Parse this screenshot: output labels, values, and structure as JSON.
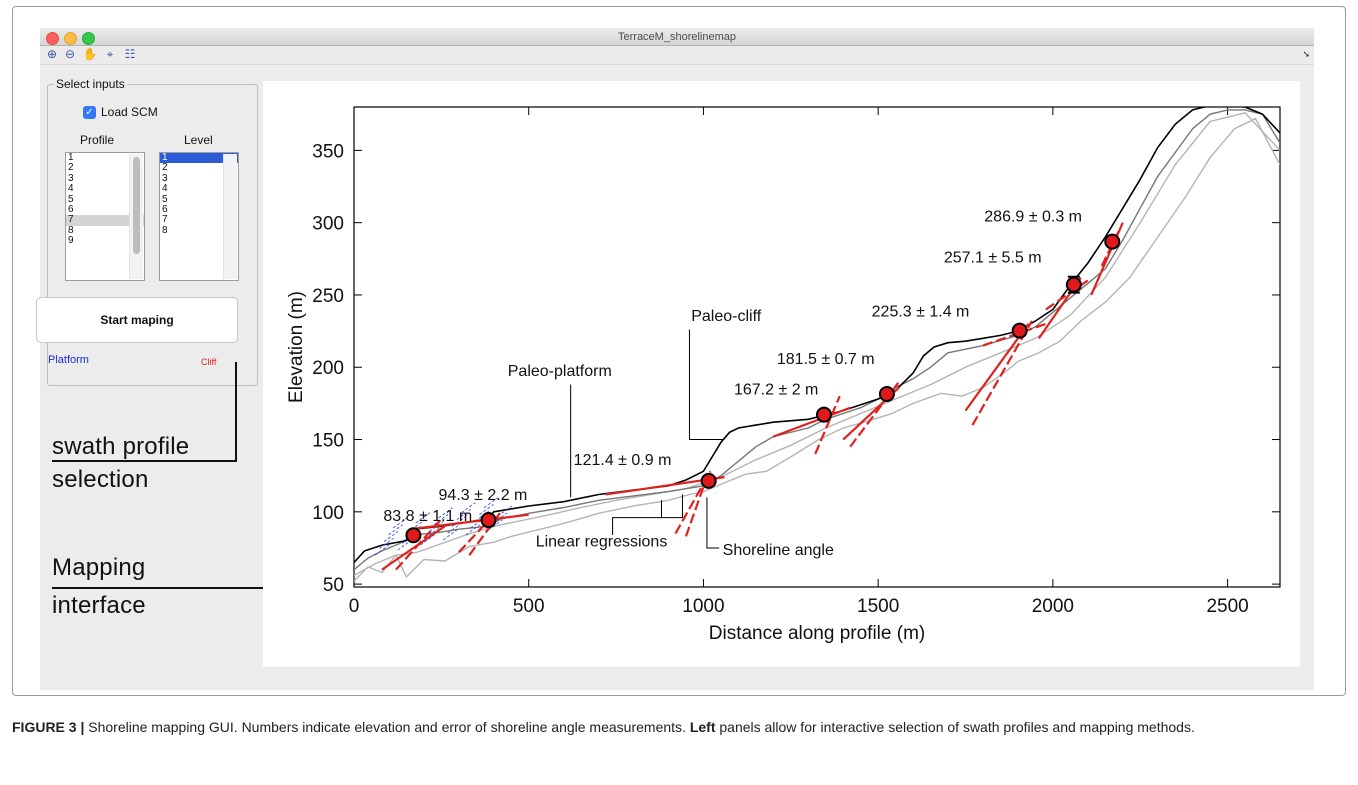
{
  "window": {
    "title": "TerraceM_shorelinemap"
  },
  "toolbar": {
    "buttons": [
      {
        "icon": "zoom-in-icon",
        "glyph": "⊕"
      },
      {
        "icon": "zoom-out-icon",
        "glyph": "⊖"
      },
      {
        "icon": "pan-hand-icon",
        "glyph": "✋"
      },
      {
        "icon": "data-cursor-icon",
        "glyph": "⌖"
      },
      {
        "icon": "legend-icon",
        "glyph": "☷"
      }
    ]
  },
  "inputs": {
    "group_title": "Select inputs",
    "load_scm_label": "Load SCM",
    "load_scm_checked": true,
    "profile_header": "Profile",
    "level_header": "Level",
    "profiles": [
      "1",
      "2",
      "3",
      "4",
      "5",
      "6",
      "7",
      "8",
      "9"
    ],
    "profile_selected": "7",
    "levels": [
      "1",
      "2",
      "3",
      "4",
      "5",
      "6",
      "7",
      "8"
    ],
    "level_selected": "1",
    "start_button": "Start maping",
    "platform_label": "Platform",
    "cliff_label": "Cliff"
  },
  "annotations": {
    "swath_line1": "swath profile",
    "swath_line2": "selection",
    "mapping_line1": "Mapping",
    "mapping_line2": "interface"
  },
  "caption": {
    "figure_label": "FIGURE 3 |",
    "text_a": " Shoreline mapping GUI. Numbers indicate elevation and error of shoreline angle measurements. ",
    "bold": "Left",
    "text_b": " panels allow for interactive selection of swath profiles and mapping methods."
  },
  "chart_data": {
    "type": "line",
    "xlabel": "Distance along profile (m)",
    "ylabel": "Elevation (m)",
    "xlim": [
      0,
      2650
    ],
    "ylim": [
      48,
      380
    ],
    "xticks": [
      0,
      500,
      1000,
      1500,
      2000,
      2500
    ],
    "yticks": [
      50,
      100,
      150,
      200,
      250,
      300,
      350
    ],
    "colors": {
      "profile_main": "#000000",
      "profile_mid": "#777777",
      "profile_light": "#b4b4b4",
      "platform": "#1f3fe0",
      "cliff": "#e0211d",
      "point_fill": "#e01a1a"
    },
    "series": [
      {
        "style": "main",
        "x": [
          0,
          30,
          80,
          150,
          170,
          250,
          300,
          380,
          400,
          500,
          600,
          700,
          800,
          900,
          950,
          1000,
          1030,
          1050,
          1075,
          1100,
          1150,
          1200,
          1300,
          1350,
          1400,
          1450,
          1500,
          1550,
          1600,
          1630,
          1660,
          1700,
          1750,
          1800,
          1850,
          1900,
          1950,
          2000,
          2060,
          2100,
          2150,
          2200,
          2250,
          2300,
          2350,
          2400,
          2450,
          2500,
          2550,
          2600,
          2650
        ],
        "y": [
          65,
          73,
          77,
          80,
          88,
          90,
          92,
          95,
          100,
          104,
          107,
          112,
          115,
          118,
          122,
          128,
          140,
          148,
          155,
          158,
          160,
          162,
          164,
          167,
          170,
          174,
          178,
          184,
          196,
          208,
          214,
          217,
          218,
          220,
          222,
          225,
          232,
          240,
          260,
          272,
          290,
          310,
          330,
          352,
          368,
          378,
          381,
          381,
          380,
          375,
          362
        ]
      },
      {
        "style": "mid",
        "x": [
          0,
          40,
          80,
          130,
          170,
          250,
          300,
          380,
          420,
          500,
          600,
          700,
          800,
          900,
          950,
          1000,
          1050,
          1100,
          1150,
          1200,
          1300,
          1350,
          1400,
          1450,
          1500,
          1550,
          1600,
          1650,
          1700,
          1800,
          1900,
          1950,
          2000,
          2100,
          2150,
          2200,
          2250,
          2300,
          2400,
          2450,
          2500,
          2550,
          2600,
          2650
        ],
        "y": [
          60,
          68,
          73,
          78,
          84,
          86,
          88,
          90,
          95,
          99,
          103,
          108,
          111,
          114,
          116,
          118,
          125,
          135,
          145,
          152,
          158,
          164,
          168,
          172,
          178,
          186,
          192,
          200,
          210,
          215,
          222,
          228,
          238,
          258,
          268,
          288,
          310,
          332,
          365,
          375,
          378,
          378,
          375,
          355
        ]
      },
      {
        "style": "light",
        "x": [
          0,
          40,
          80,
          120,
          150,
          200,
          260,
          330,
          400,
          450,
          500,
          600,
          700,
          800,
          900,
          960,
          1000,
          1060,
          1120,
          1180,
          1250,
          1330,
          1400,
          1460,
          1540,
          1600,
          1680,
          1740,
          1800,
          1860,
          1900,
          1960,
          2020,
          2080,
          2150,
          2220,
          2300,
          2380,
          2450,
          2520,
          2580,
          2650
        ],
        "y": [
          52,
          62,
          58,
          70,
          55,
          67,
          66,
          76,
          79,
          83,
          86,
          92,
          99,
          104,
          108,
          112,
          114,
          120,
          126,
          128,
          138,
          150,
          158,
          162,
          168,
          175,
          182,
          180,
          186,
          196,
          204,
          210,
          218,
          232,
          245,
          262,
          290,
          318,
          345,
          365,
          372,
          340
        ]
      },
      {
        "style": "light",
        "x": [
          0,
          60,
          120,
          180,
          250,
          320,
          400,
          480,
          560,
          650,
          750,
          850,
          950,
          1050,
          1150,
          1250,
          1350,
          1450,
          1550,
          1650,
          1750,
          1850,
          1950,
          2050,
          2150,
          2250,
          2350,
          2450,
          2550,
          2650
        ],
        "y": [
          56,
          64,
          70,
          72,
          78,
          84,
          90,
          94,
          98,
          103,
          108,
          112,
          116,
          124,
          136,
          146,
          158,
          168,
          178,
          188,
          200,
          210,
          220,
          236,
          262,
          300,
          340,
          370,
          376,
          350
        ]
      }
    ],
    "shoreline_points": [
      {
        "x": 170,
        "y": 83.8,
        "label": "83.8 ± 1.1 m"
      },
      {
        "x": 385,
        "y": 94.3,
        "label": "94.3 ± 2.2 m"
      },
      {
        "x": 1015,
        "y": 121.4,
        "label": "121.4 ± 0.9 m"
      },
      {
        "x": 1345,
        "y": 167.2,
        "label": "167.2 ± 2 m"
      },
      {
        "x": 1525,
        "y": 181.5,
        "label": "181.5 ± 0.7 m"
      },
      {
        "x": 1905,
        "y": 225.3,
        "label": "225.3 ± 1.4 m"
      },
      {
        "x": 2060,
        "y": 257.1,
        "label": "257.1 ± 5.5 m"
      },
      {
        "x": 2170,
        "y": 286.9,
        "label": "286.9 ± 0.3 m"
      }
    ],
    "callouts": [
      "Paleo-platform",
      "Paleo-cliff",
      "Linear regressions",
      "Shoreline angle"
    ]
  }
}
